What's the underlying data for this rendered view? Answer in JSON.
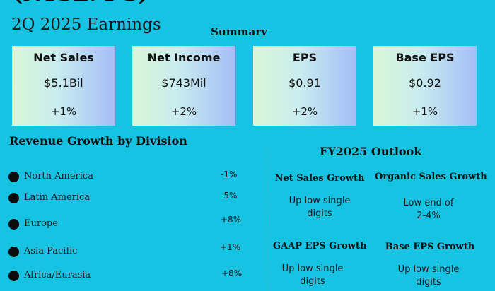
{
  "header": {
    "ticker": "(NYSE: PG)",
    "quarter_title": "2Q 2025 Earnings",
    "summary_label": "Summary"
  },
  "cards": [
    {
      "title": "Net Sales",
      "value": "$5.1Bil",
      "change": "+1%"
    },
    {
      "title": "Net Income",
      "value": "$743Mil",
      "change": "+2%"
    },
    {
      "title": "EPS",
      "value": "$0.91",
      "change": "+2%"
    },
    {
      "title": "Base EPS",
      "value": "$0.92",
      "change": "+1%"
    }
  ],
  "revenue": {
    "title": "Revenue Growth by Division",
    "rows": [
      {
        "name": "North America",
        "pct": "-1%"
      },
      {
        "name": "Latin America",
        "pct": "-5%"
      },
      {
        "name": "Europe",
        "pct": "+8%"
      },
      {
        "name": "Asia Pacific",
        "pct": "+1%"
      },
      {
        "name": "Africa/Eurasia",
        "pct": "+8%"
      }
    ]
  },
  "outlook": {
    "title": "FY2025 Outlook",
    "items": [
      {
        "heading": "Net Sales Growth",
        "line1": "Up low single",
        "line2": "digits"
      },
      {
        "heading": "Organic Sales Growth",
        "line1": "Low end of",
        "line2": "2-4%"
      },
      {
        "heading": "GAAP EPS Growth",
        "line1": "Up low single",
        "line2": "digits"
      },
      {
        "heading": "Base EPS Growth",
        "line1": "Up low single",
        "line2": "digits"
      }
    ]
  }
}
